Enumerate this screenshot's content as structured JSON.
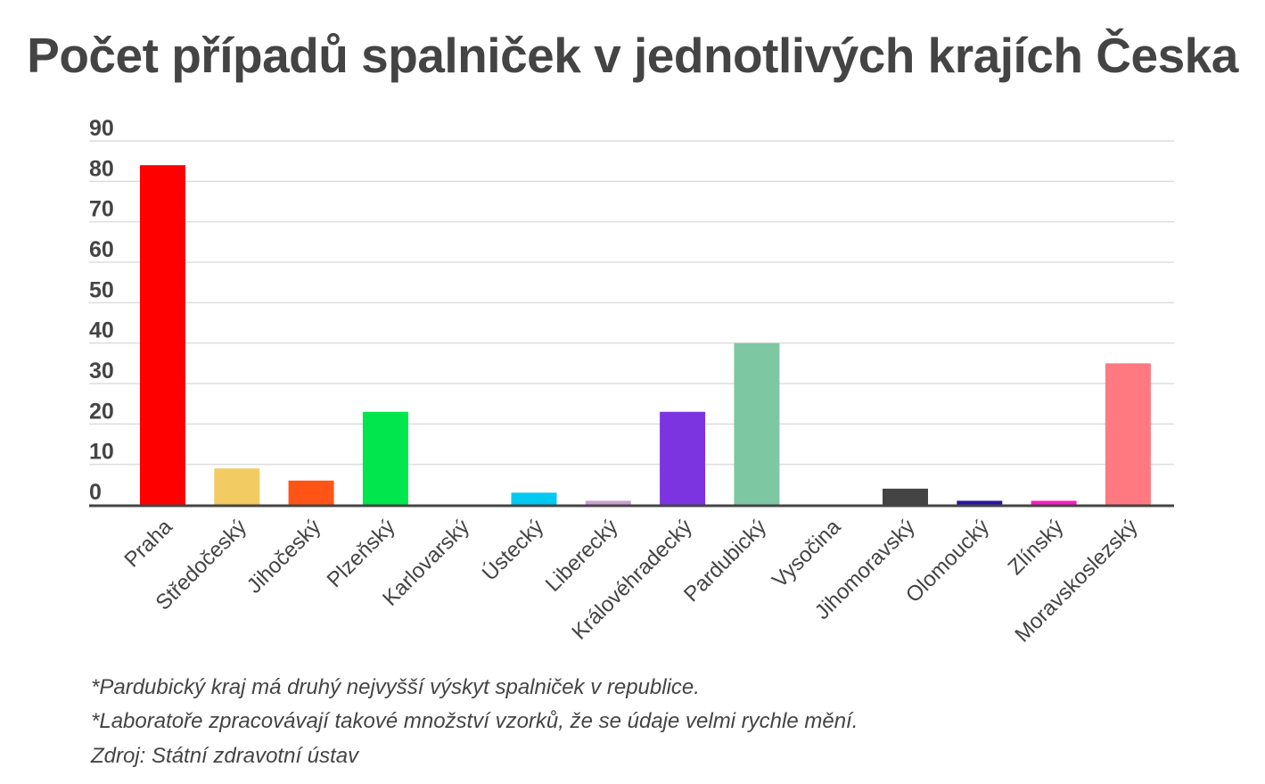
{
  "title": "Počet případů spalniček v jednotlivých krajích Česka",
  "notes": [
    "*Pardubický kraj má druhý nejvyšší výskyt spalniček v republice.",
    "*Laboratoře zpracovávají takové množství vzorků, že se údaje velmi rychle mění.",
    "Zdroj: Státní zdravotní ústav"
  ],
  "chart_data": {
    "type": "bar",
    "categories": [
      "Praha",
      "Středočeský",
      "Jihočeský",
      "Plzeňský",
      "Karlovarský",
      "Ústecký",
      "Liberecký",
      "Královéhradecký",
      "Pardubický",
      "Vysočina",
      "Jihomoravský",
      "Olomoucký",
      "Zlínský",
      "Moravskoslezský"
    ],
    "values": [
      84,
      9,
      6,
      23,
      0,
      3,
      1,
      23,
      40,
      0,
      4,
      1,
      1,
      35
    ],
    "colors": [
      "#ff0000",
      "#f2cb63",
      "#ff5416",
      "#00e64c",
      "#cccccc",
      "#00c8f0",
      "#c8a2d2",
      "#7b34e0",
      "#7ec7a3",
      "#cccccc",
      "#444444",
      "#2a14a6",
      "#ff1ac6",
      "#ff7a80"
    ],
    "title": "Počet případů spalniček v jednotlivých krajích Česka",
    "xlabel": "",
    "ylabel": "",
    "ylim": [
      0,
      90
    ],
    "yticks": [
      0,
      10,
      20,
      30,
      40,
      50,
      60,
      70,
      80,
      90
    ],
    "grid": true,
    "legend": "none"
  }
}
